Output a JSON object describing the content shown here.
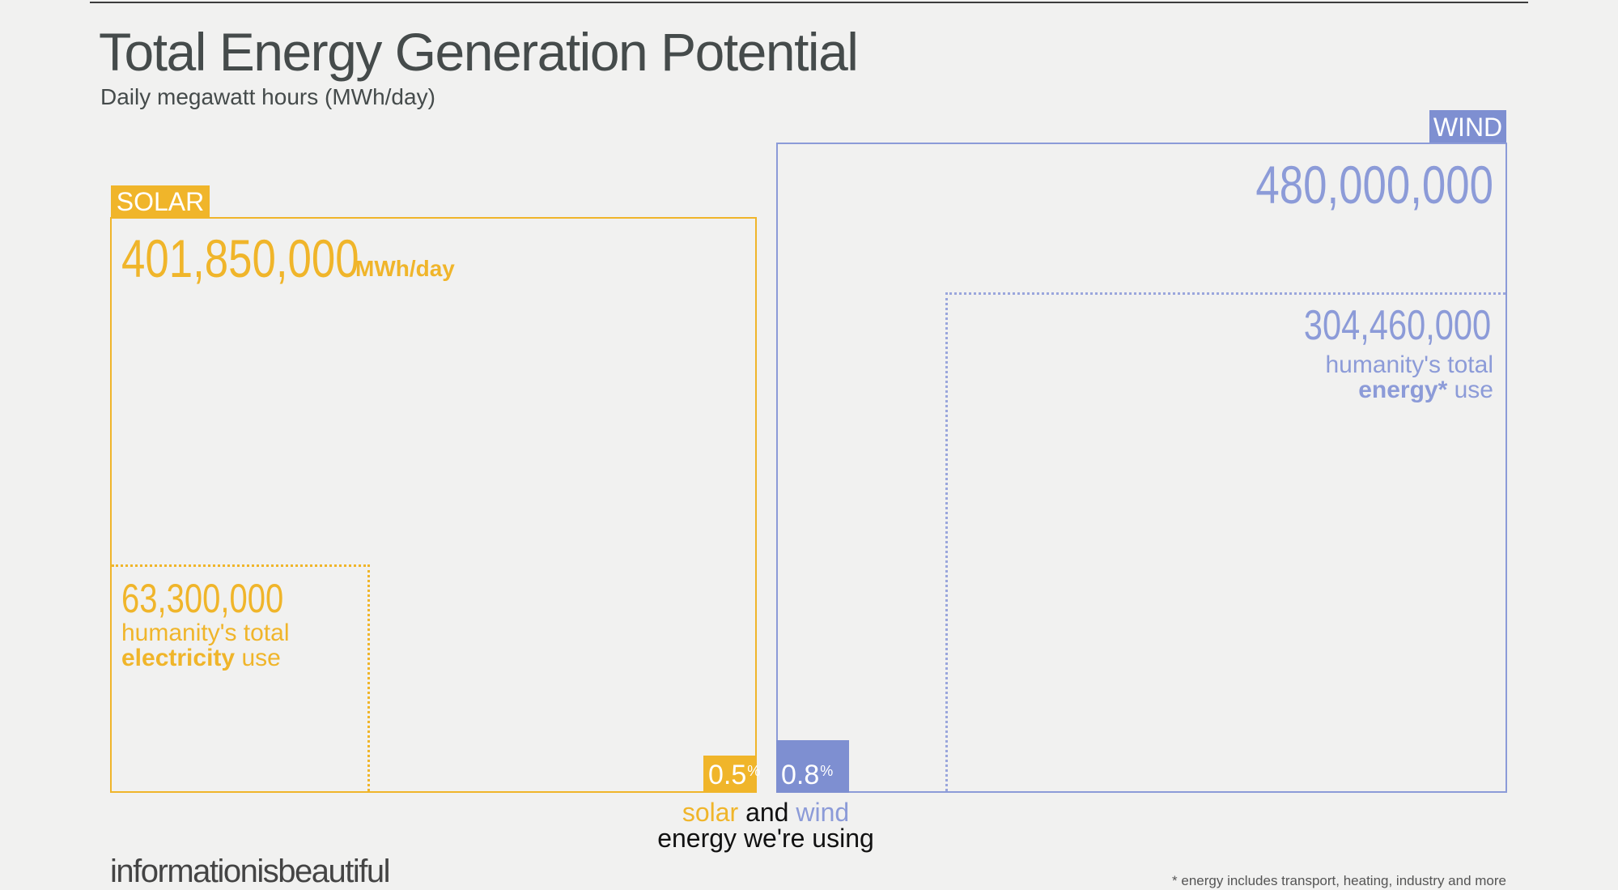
{
  "header": {
    "title": "Total Energy Generation Potential",
    "subtitle": "Daily megawatt hours (MWh/day)"
  },
  "solar": {
    "tag": "SOLAR",
    "value_label": "401,850,000",
    "unit": "MWh/day",
    "sub_value_label": "63,300,000",
    "sub_note_line1": "humanity's total",
    "sub_note_bold": "electricity",
    "sub_note_rest": "use",
    "usage_pct": "0.5",
    "pct_sign": "%"
  },
  "wind": {
    "tag": "WIND",
    "value_label": "480,000,000",
    "sub_value_label": "304,460,000",
    "sub_note_line1": "humanity's total",
    "sub_note_bold": "energy*",
    "sub_note_rest": "use",
    "usage_pct": "0.8",
    "pct_sign": "%"
  },
  "caption": {
    "word_solar": "solar",
    "word_and": "and",
    "word_wind": "wind",
    "line2": "energy we're using"
  },
  "footer": {
    "brand": "informationisbeautiful",
    "footnote": "* energy includes transport, heating, industry and more"
  },
  "colors": {
    "solar": "#f0b52a",
    "wind": "#8c9bd8",
    "background": "#f1f1f0",
    "text": "#454b4b"
  },
  "chart_data": {
    "type": "area-comparison",
    "title": "Total Energy Generation Potential",
    "subtitle": "Daily megawatt hours (MWh/day)",
    "unit": "MWh/day",
    "series": [
      {
        "name": "SOLAR",
        "potential": 401850000,
        "comparison_label": "humanity's total electricity use",
        "comparison_value": 63300000,
        "currently_used_percent": 0.5
      },
      {
        "name": "WIND",
        "potential": 480000000,
        "comparison_label": "humanity's total energy* use",
        "comparison_value": 304460000,
        "currently_used_percent": 0.8
      }
    ]
  }
}
